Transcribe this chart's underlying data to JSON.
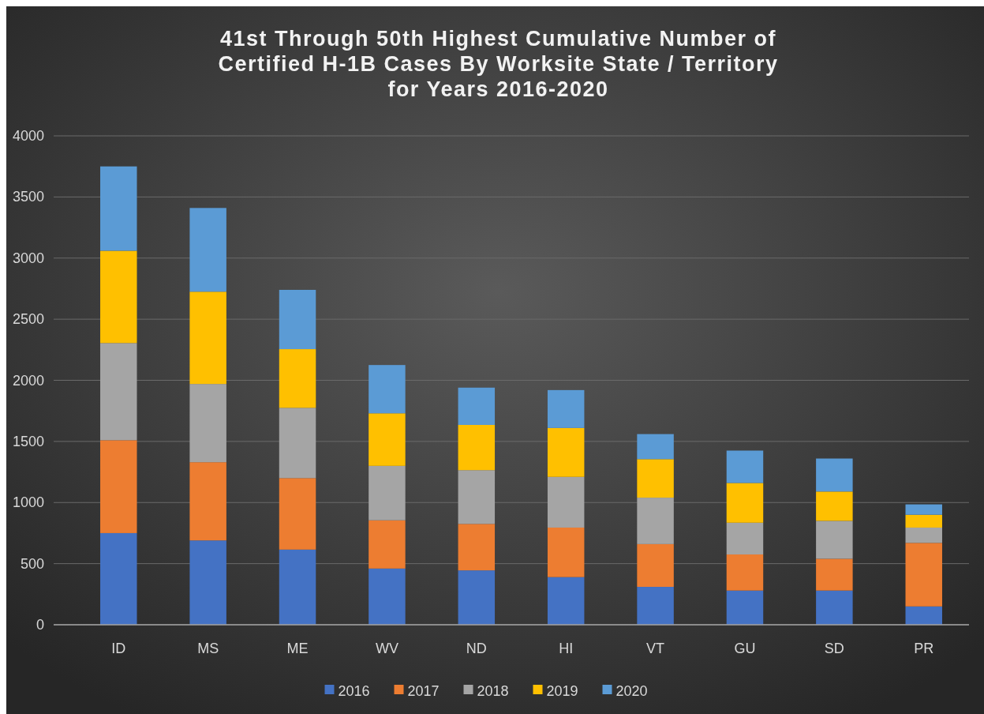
{
  "chart_data": {
    "type": "bar",
    "stacked": true,
    "title": "41st Through 50th Highest Cumulative Number of Certified H-1B Cases By Worksite State / Territory for Years 2016-2020",
    "categories": [
      "ID",
      "MS",
      "ME",
      "WV",
      "ND",
      "HI",
      "VT",
      "GU",
      "SD",
      "PR"
    ],
    "series": [
      {
        "name": "2016",
        "color": "#4472c4",
        "values": [
          750,
          690,
          615,
          460,
          445,
          390,
          310,
          280,
          280,
          150
        ]
      },
      {
        "name": "2017",
        "color": "#ed7d31",
        "values": [
          760,
          640,
          585,
          395,
          380,
          405,
          350,
          295,
          260,
          520
        ]
      },
      {
        "name": "2018",
        "color": "#a5a5a5",
        "values": [
          795,
          640,
          575,
          445,
          440,
          415,
          380,
          260,
          310,
          125
        ]
      },
      {
        "name": "2019",
        "color": "#ffc000",
        "values": [
          755,
          755,
          480,
          430,
          370,
          400,
          315,
          325,
          240,
          105
        ]
      },
      {
        "name": "2020",
        "color": "#5b9bd5",
        "values": [
          690,
          685,
          485,
          395,
          305,
          310,
          205,
          265,
          270,
          85
        ]
      }
    ],
    "ylim": [
      0,
      4000
    ],
    "yticks": [
      0,
      500,
      1000,
      1500,
      2000,
      2500,
      3000,
      3500,
      4000
    ],
    "grid": "y",
    "legend": "bottom"
  }
}
